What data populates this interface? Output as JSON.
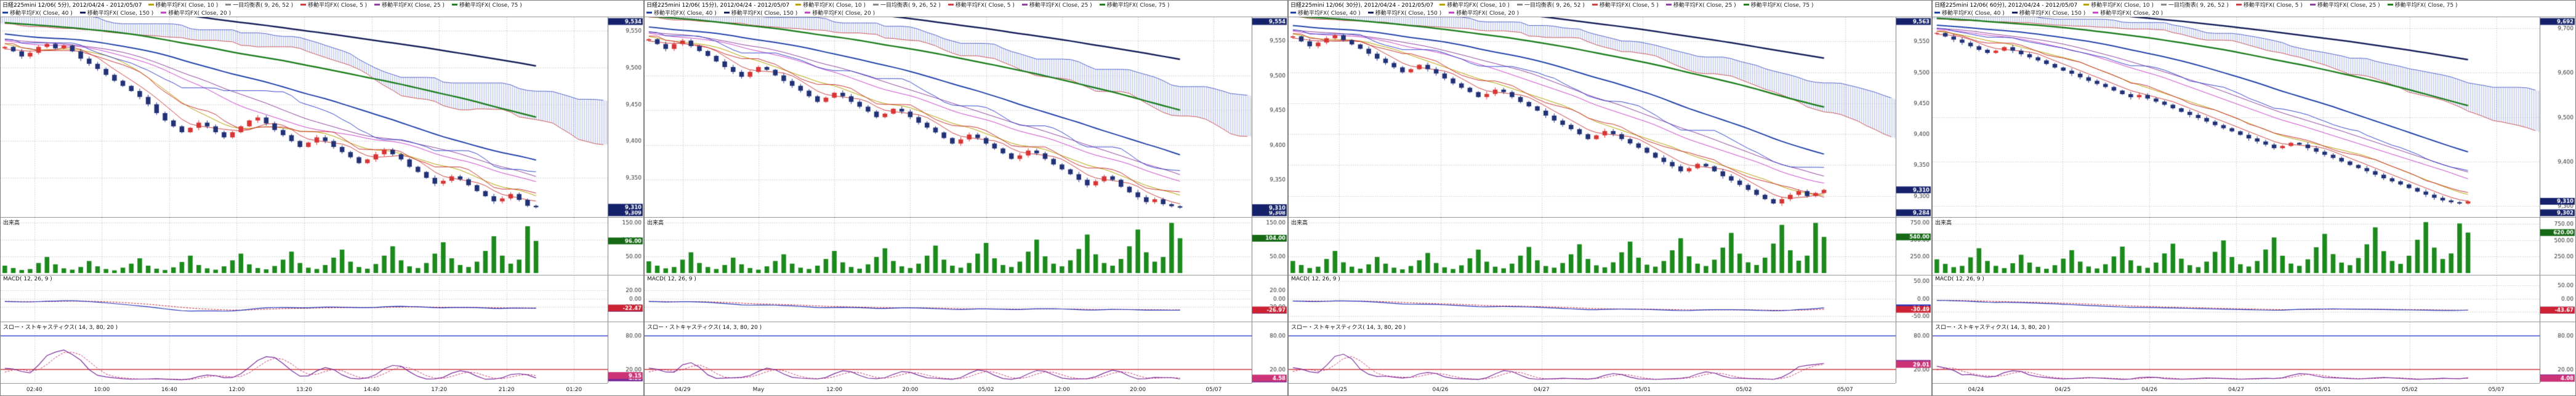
{
  "panels": [
    {
      "header": {
        "title": "日経225mini 12/06( 5分), 2012/04/24 - 2012/05/07",
        "legend_row1": [
          {
            "label": "移動平均FX( Close, 10 )",
            "color": "#b8a000"
          },
          {
            "label": "一目均衡表( 9, 26, 52 )",
            "color": "#888888"
          },
          {
            "label": "移動平均FX( Close, 5 )",
            "color": "#d04040"
          },
          {
            "label": "移動平均FX( Close, 25 )",
            "color": "#9040a0"
          },
          {
            "label": "移動平均FX( Close, 75 )",
            "color": "#208020"
          }
        ],
        "legend_row2": [
          {
            "label": "移動平均FX( Close, 40 )",
            "color": "#2244aa"
          },
          {
            "label": "移動平均FX( Close, 150 )",
            "color": "#16205a"
          },
          {
            "label": "移動平均FX( Close, 20 )",
            "color": "#cc44cc"
          }
        ]
      },
      "volume": {
        "label": "出来高"
      },
      "macd": {
        "label": "MACD( 12, 26, 9 )"
      },
      "stoch": {
        "label": "スロー・ストキャスティクス( 14, 3, 80, 20 )"
      }
    },
    {
      "header": {
        "title": "日経225mini 12/06( 15分), 2012/04/24 - 2012/05/07",
        "legend_row1": [
          {
            "label": "移動平均FX( Close, 10 )",
            "color": "#b8a000"
          },
          {
            "label": "一目均衡表( 9, 26, 52 )",
            "color": "#888888"
          },
          {
            "label": "移動平均FX( Close, 5 )",
            "color": "#d04040"
          },
          {
            "label": "移動平均FX( Close, 25 )",
            "color": "#9040a0"
          },
          {
            "label": "移動平均FX( Close, 75 )",
            "color": "#208020"
          }
        ],
        "legend_row2": [
          {
            "label": "移動平均FX( Close, 40 )",
            "color": "#2244aa"
          },
          {
            "label": "移動平均FX( Close, 150 )",
            "color": "#16205a"
          },
          {
            "label": "移動平均FX( Close, 20 )",
            "color": "#cc44cc"
          }
        ]
      },
      "volume": {
        "label": "出来高"
      },
      "macd": {
        "label": "MACD( 12, 26, 9 )"
      },
      "stoch": {
        "label": "スロー・ストキャスティクス( 14, 3, 80, 20 )"
      }
    },
    {
      "header": {
        "title": "日経225mini 12/06( 30分), 2012/04/24 - 2012/05/07",
        "legend_row1": [
          {
            "label": "移動平均FX( Close, 10 )",
            "color": "#b8a000"
          },
          {
            "label": "一目均衡表( 9, 26, 52 )",
            "color": "#888888"
          },
          {
            "label": "移動平均FX( Close, 5 )",
            "color": "#d04040"
          },
          {
            "label": "移動平均FX( Close, 25 )",
            "color": "#9040a0"
          },
          {
            "label": "移動平均FX( Close, 75 )",
            "color": "#208020"
          }
        ],
        "legend_row2": [
          {
            "label": "移動平均FX( Close, 40 )",
            "color": "#2244aa"
          },
          {
            "label": "移動平均FX( Close, 150 )",
            "color": "#16205a"
          },
          {
            "label": "移動平均FX( Close, 20 )",
            "color": "#cc44cc"
          }
        ]
      },
      "volume": {
        "label": "出来高"
      },
      "macd": {
        "label": "MACD( 12, 26, 9 )"
      },
      "stoch": {
        "label": "スロー・ストキャスティクス( 14, 3, 80, 20 )"
      }
    },
    {
      "header": {
        "title": "日経225mini 12/06( 60分), 2012/04/24 - 2012/05/07",
        "legend_row1": [
          {
            "label": "移動平均FX( Close, 10 )",
            "color": "#b8a000"
          },
          {
            "label": "一目均衡表( 9, 26, 52 )",
            "color": "#888888"
          },
          {
            "label": "移動平均FX( Close, 5 )",
            "color": "#d04040"
          },
          {
            "label": "移動平均FX( Close, 25 )",
            "color": "#9040a0"
          },
          {
            "label": "移動平均FX( Close, 75 )",
            "color": "#208020"
          }
        ],
        "legend_row2": [
          {
            "label": "移動平均FX( Close, 40 )",
            "color": "#2244aa"
          },
          {
            "label": "移動平均FX( Close, 150 )",
            "color": "#16205a"
          },
          {
            "label": "移動平均FX( Close, 20 )",
            "color": "#cc44cc"
          }
        ]
      },
      "volume": {
        "label": "出来高"
      },
      "macd": {
        "label": "MACD( 12, 26, 9 )"
      },
      "stoch": {
        "label": "スロー・ストキャスティクス( 14, 3, 80, 20 )"
      }
    }
  ],
  "chart_data": [
    {
      "type": "candlestick",
      "title": "日経225mini 12/06( 5分)",
      "x_labels": [
        "02:40",
        "10:00",
        "16:40",
        "12:00",
        "13:20",
        "14:40",
        "17:20",
        "21:20",
        "01:20"
      ],
      "price": {
        "ylim": [
          9300,
          9565
        ],
        "y_ticks": [
          9550,
          9500,
          9450,
          9400,
          9350
        ],
        "last": 9310,
        "closes": [
          9528,
          9522,
          9515,
          9520,
          9528,
          9532,
          9526,
          9530,
          9522,
          9512,
          9505,
          9498,
          9490,
          9482,
          9475,
          9468,
          9460,
          9450,
          9438,
          9428,
          9420,
          9412,
          9418,
          9425,
          9420,
          9412,
          9405,
          9412,
          9420,
          9428,
          9432,
          9424,
          9415,
          9408,
          9400,
          9392,
          9398,
          9405,
          9400,
          9392,
          9385,
          9378,
          9370,
          9375,
          9382,
          9388,
          9382,
          9375,
          9365,
          9358,
          9350,
          9342,
          9346,
          9352,
          9348,
          9340,
          9332,
          9325,
          9318,
          9322,
          9328,
          9320,
          9312,
          9310
        ]
      },
      "volume": {
        "ylim": [
          0,
          160
        ],
        "y_ticks": [
          150,
          100,
          50
        ],
        "values": [
          22,
          15,
          9,
          12,
          30,
          48,
          26,
          14,
          10,
          18,
          36,
          20,
          12,
          8,
          16,
          28,
          44,
          22,
          13,
          9,
          17,
          33,
          52,
          24,
          14,
          10,
          20,
          38,
          58,
          26,
          15,
          11,
          21,
          40,
          64,
          30,
          16,
          12,
          24,
          46,
          70,
          34,
          18,
          13,
          27,
          52,
          80,
          38,
          20,
          15,
          30,
          58,
          92,
          44,
          24,
          18,
          34,
          66,
          110,
          52,
          28,
          40,
          140,
          96
        ]
      },
      "macd": {
        "params": [
          12,
          26,
          9
        ],
        "ylim": [
          -50,
          50
        ],
        "y_ticks": [
          20,
          0,
          -20
        ]
      },
      "stoch": {
        "params": [
          14,
          3,
          80,
          20
        ],
        "upper": 80,
        "lower": 20,
        "y_ticks": [
          80,
          20
        ]
      },
      "overlays": {
        "ichimoku": [
          9,
          26,
          52
        ],
        "ma_periods": [
          5,
          10,
          20,
          25,
          40,
          75,
          150
        ]
      }
    },
    {
      "type": "candlestick",
      "title": "日経225mini 12/06( 15分)",
      "x_labels": [
        "04/29",
        "May",
        "12:00",
        "20:00",
        "05/02",
        "12:00",
        "20:00",
        "05/07"
      ],
      "price": {
        "ylim": [
          9300,
          9580
        ],
        "y_ticks": [
          9550,
          9500,
          9450,
          9400,
          9350
        ],
        "last": 9310,
        "closes": [
          9552,
          9545,
          9538,
          9545,
          9550,
          9542,
          9535,
          9528,
          9520,
          9512,
          9505,
          9498,
          9505,
          9512,
          9508,
          9500,
          9492,
          9485,
          9478,
          9470,
          9462,
          9468,
          9475,
          9470,
          9462,
          9455,
          9448,
          9440,
          9445,
          9452,
          9448,
          9440,
          9432,
          9425,
          9418,
          9410,
          9402,
          9408,
          9415,
          9410,
          9402,
          9395,
          9388,
          9380,
          9385,
          9392,
          9388,
          9380,
          9372,
          9365,
          9358,
          9350,
          9342,
          9348,
          9355,
          9350,
          9340,
          9332,
          9325,
          9318,
          9322,
          9315,
          9312,
          9310
        ]
      },
      "volume": {
        "ylim": [
          0,
          160
        ],
        "y_ticks": [
          150,
          100,
          50
        ],
        "values": [
          35,
          22,
          14,
          18,
          40,
          62,
          30,
          18,
          12,
          24,
          46,
          26,
          15,
          10,
          20,
          36,
          56,
          28,
          16,
          12,
          22,
          42,
          66,
          32,
          18,
          13,
          26,
          48,
          74,
          36,
          20,
          15,
          28,
          52,
          82,
          40,
          22,
          16,
          30,
          58,
          90,
          44,
          24,
          18,
          34,
          64,
          100,
          50,
          28,
          20,
          38,
          72,
          115,
          56,
          30,
          22,
          42,
          80,
          130,
          62,
          34,
          48,
          150,
          104
        ]
      },
      "macd": {
        "params": [
          12,
          26,
          9
        ],
        "ylim": [
          -50,
          50
        ],
        "y_ticks": [
          20,
          0,
          -20
        ]
      },
      "stoch": {
        "params": [
          14,
          3,
          80,
          20
        ],
        "upper": 80,
        "lower": 20,
        "y_ticks": [
          80,
          20
        ]
      },
      "overlays": {
        "ichimoku": [
          9,
          26,
          52
        ],
        "ma_periods": [
          5,
          10,
          20,
          25,
          40,
          75,
          150
        ]
      }
    },
    {
      "type": "candlestick",
      "title": "日経225mini 12/06( 30分)",
      "x_labels": [
        "04/25",
        "04/26",
        "04/27",
        "05/01",
        "05/02",
        "05/07"
      ],
      "price": {
        "ylim": [
          9270,
          9585
        ],
        "y_ticks": [
          9550,
          9500,
          9450,
          9400,
          9350,
          9300
        ],
        "last": 9310,
        "closes": [
          9558,
          9550,
          9542,
          9548,
          9555,
          9560,
          9552,
          9545,
          9538,
          9530,
          9522,
          9515,
          9508,
          9500,
          9505,
          9512,
          9505,
          9498,
          9490,
          9482,
          9475,
          9468,
          9460,
          9465,
          9472,
          9468,
          9460,
          9452,
          9445,
          9438,
          9430,
          9422,
          9415,
          9408,
          9400,
          9392,
          9398,
          9405,
          9400,
          9392,
          9385,
          9378,
          9370,
          9362,
          9355,
          9348,
          9340,
          9345,
          9352,
          9348,
          9340,
          9332,
          9325,
          9318,
          9310,
          9302,
          9295,
          9288,
          9295,
          9302,
          9308,
          9300,
          9305,
          9310
        ]
      },
      "volume": {
        "ylim": [
          0,
          800
        ],
        "y_ticks": [
          750,
          500,
          250
        ],
        "values": [
          180,
          120,
          75,
          95,
          210,
          330,
          160,
          95,
          65,
          130,
          240,
          140,
          80,
          55,
          105,
          190,
          300,
          150,
          85,
          60,
          115,
          220,
          350,
          170,
          95,
          70,
          140,
          260,
          390,
          190,
          105,
          80,
          150,
          280,
          430,
          210,
          115,
          85,
          160,
          310,
          470,
          230,
          125,
          95,
          180,
          340,
          520,
          250,
          140,
          105,
          200,
          380,
          600,
          290,
          160,
          120,
          230,
          440,
          720,
          340,
          185,
          260,
          750,
          540
        ]
      },
      "macd": {
        "params": [
          12,
          26,
          9
        ],
        "ylim": [
          -60,
          60
        ],
        "y_ticks": [
          50,
          0,
          -50
        ]
      },
      "stoch": {
        "params": [
          14,
          3,
          80,
          20
        ],
        "upper": 80,
        "lower": 20,
        "y_ticks": [
          80,
          20
        ]
      },
      "overlays": {
        "ichimoku": [
          9,
          26,
          52
        ],
        "ma_periods": [
          5,
          10,
          20,
          25,
          40,
          75,
          150
        ]
      }
    },
    {
      "type": "candlestick",
      "title": "日経225mini 12/06( 60分)",
      "x_labels": [
        "04/24",
        "04/25",
        "04/26",
        "04/27",
        "05/01",
        "05/02",
        "05/07"
      ],
      "price": {
        "ylim": [
          9280,
          9720
        ],
        "y_ticks": [
          9700,
          9600,
          9500,
          9400,
          9300
        ],
        "last": 9310,
        "closes": [
          9690,
          9682,
          9675,
          9668,
          9660,
          9652,
          9645,
          9650,
          9658,
          9650,
          9642,
          9635,
          9628,
          9620,
          9612,
          9605,
          9598,
          9590,
          9582,
          9575,
          9568,
          9560,
          9552,
          9545,
          9550,
          9542,
          9535,
          9528,
          9520,
          9512,
          9505,
          9498,
          9490,
          9482,
          9475,
          9468,
          9460,
          9452,
          9445,
          9438,
          9430,
          9435,
          9442,
          9438,
          9430,
          9422,
          9415,
          9408,
          9400,
          9392,
          9385,
          9378,
          9370,
          9362,
          9355,
          9348,
          9340,
          9332,
          9325,
          9318,
          9312,
          9308,
          9305,
          9310
        ]
      },
      "volume": {
        "ylim": [
          0,
          820
        ],
        "y_ticks": [
          750,
          500,
          250
        ],
        "values": [
          210,
          140,
          90,
          110,
          240,
          380,
          185,
          110,
          75,
          150,
          280,
          160,
          95,
          65,
          120,
          220,
          350,
          175,
          100,
          70,
          135,
          255,
          405,
          195,
          110,
          80,
          160,
          300,
          450,
          220,
          120,
          90,
          175,
          325,
          500,
          245,
          135,
          100,
          185,
          360,
          545,
          265,
          145,
          110,
          210,
          395,
          600,
          290,
          160,
          120,
          230,
          440,
          700,
          335,
          185,
          140,
          265,
          510,
          780,
          390,
          215,
          300,
          760,
          620
        ]
      },
      "macd": {
        "params": [
          12,
          26,
          9
        ],
        "ylim": [
          -80,
          80
        ],
        "y_ticks": [
          50,
          0,
          -50
        ]
      },
      "stoch": {
        "params": [
          14,
          3,
          80,
          20
        ],
        "upper": 80,
        "lower": 20,
        "y_ticks": [
          80,
          20
        ]
      },
      "overlays": {
        "ichimoku": [
          9,
          26,
          52
        ],
        "ma_periods": [
          5,
          10,
          20,
          25,
          40,
          75,
          150
        ]
      }
    }
  ],
  "colors": {
    "candle_up": "#d93535",
    "candle_down": "#223277",
    "volume_bar": "#1c8a1c",
    "cloud_bull": "rgba(226,120,120,0.6)",
    "cloud_bear": "rgba(120,140,226,0.6)",
    "span_a": "#cc5555",
    "span_b": "#5566cc",
    "tenkan": "#cc3333",
    "kijun": "#3344cc",
    "ma5": "#d04040",
    "ma10": "#b8a000",
    "ma20": "#cc44cc",
    "ma25": "#9040a0",
    "ma40": "#2244aa",
    "ma75": "#208020",
    "ma150": "#16205a",
    "macd_line": "#2233bb",
    "macd_signal": "#cc2233",
    "stoch_k": "#7a2a9a",
    "stoch_d": "#cc3377",
    "stoch_upper_line": "#3a4ad0",
    "stoch_lower_line": "#d04343",
    "badge_bg": "#15226b",
    "badge_vol": "#166a16",
    "grid": "#b8b8b8",
    "axis_text": "#333333"
  }
}
